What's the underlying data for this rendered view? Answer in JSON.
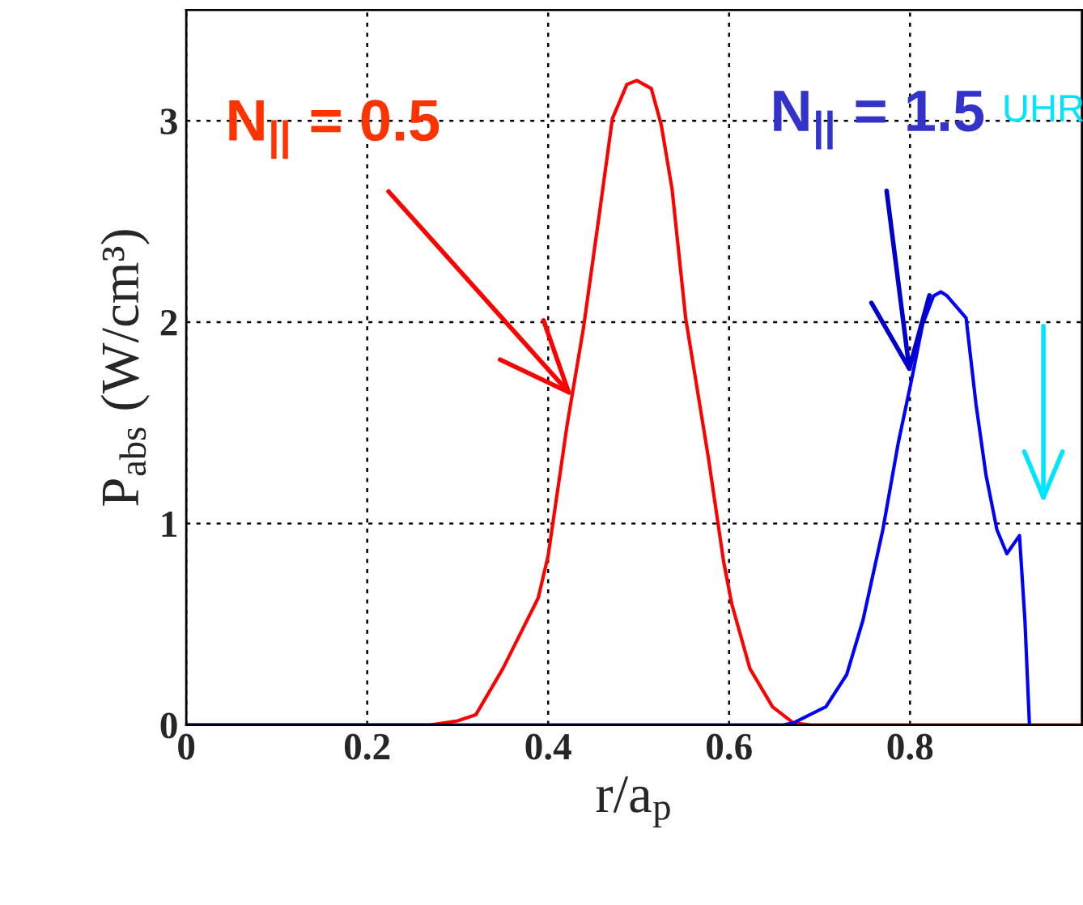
{
  "chart_data": {
    "type": "line",
    "xlabel": "r/a$_{p}$",
    "ylabel": "P$_{abs}$ (W/cm³)",
    "xlim": [
      0,
      0.99
    ],
    "ylim": [
      0,
      3.55
    ],
    "xticks": [
      0,
      0.2,
      0.4,
      0.6,
      0.8
    ],
    "yticks": [
      0,
      1,
      2,
      3
    ],
    "grid": true,
    "legend": false,
    "line_style": "solid",
    "marker": "none",
    "series": [
      {
        "color": "#ff0000",
        "x": [
          0,
          0.27,
          0.3,
          0.32,
          0.35,
          0.389,
          0.4,
          0.421,
          0.439,
          0.457,
          0.471,
          0.487,
          0.498,
          0.514,
          0.525,
          0.537,
          0.552,
          0.577,
          0.594,
          0.603,
          0.623,
          0.648,
          0.671,
          0.69,
          0.99
        ],
        "values": [
          0,
          0,
          0.02,
          0.05,
          0.28,
          0.63,
          0.84,
          1.49,
          1.97,
          2.55,
          3.01,
          3.18,
          3.2,
          3.16,
          2.98,
          2.66,
          2.02,
          1.33,
          0.81,
          0.6,
          0.28,
          0.09,
          0.01,
          0,
          0
        ]
      },
      {
        "color": "#0000ff",
        "x": [
          0,
          0.66,
          0.671,
          0.707,
          0.73,
          0.748,
          0.77,
          0.787,
          0.802,
          0.814,
          0.826,
          0.834,
          0.841,
          0.862,
          0.873,
          0.884,
          0.896,
          0.907,
          0.921,
          0.927,
          0.932
        ],
        "values": [
          0,
          0,
          0.01,
          0.09,
          0.25,
          0.52,
          0.97,
          1.4,
          1.72,
          1.99,
          2.13,
          2.15,
          2.13,
          2.02,
          1.59,
          1.24,
          0.97,
          0.85,
          0.94,
          0.52,
          0
        ]
      }
    ],
    "annotations": [
      {
        "text": "N$_{||}$ = 0.5",
        "x": 0.427,
        "y": 1.63
      },
      {
        "text": "N$_{||}$ = 1.5",
        "x": 0.8,
        "y": 1.74
      },
      "UHR"
    ]
  }
}
